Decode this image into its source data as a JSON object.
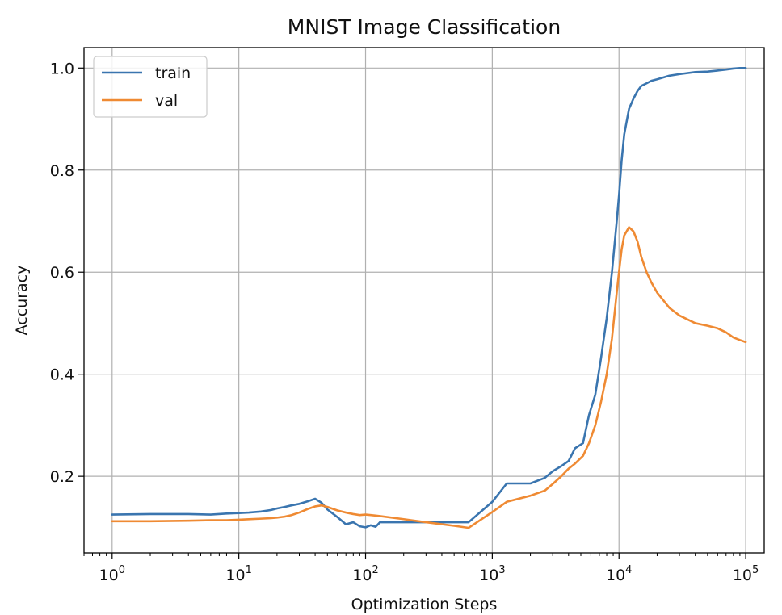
{
  "chart_data": {
    "type": "line",
    "title": "MNIST Image Classification",
    "xlabel": "Optimization Steps",
    "ylabel": "Accuracy",
    "x_scale": "log",
    "xlim": [
      0.6,
      140000
    ],
    "ylim": [
      0.05,
      1.04
    ],
    "xticks": [
      {
        "value": 1,
        "base": "10",
        "exp": "0"
      },
      {
        "value": 10,
        "base": "10",
        "exp": "1"
      },
      {
        "value": 100,
        "base": "10",
        "exp": "2"
      },
      {
        "value": 1000,
        "base": "10",
        "exp": "3"
      },
      {
        "value": 10000,
        "base": "10",
        "exp": "4"
      },
      {
        "value": 100000,
        "base": "10",
        "exp": "5"
      }
    ],
    "yticks": [
      {
        "value": 0.2,
        "label": "0.2"
      },
      {
        "value": 0.4,
        "label": "0.4"
      },
      {
        "value": 0.6,
        "label": "0.6"
      },
      {
        "value": 0.8,
        "label": "0.8"
      },
      {
        "value": 1.0,
        "label": "1.0"
      }
    ],
    "grid": true,
    "legend_position": "top-left",
    "series": [
      {
        "name": "train",
        "color": "#3a75af",
        "x": [
          1,
          2,
          4,
          6,
          8,
          10,
          12,
          15,
          18,
          20,
          23,
          26,
          30,
          35,
          40,
          45,
          50,
          60,
          70,
          80,
          90,
          100,
          110,
          120,
          130,
          200,
          300,
          400,
          500,
          650,
          1000,
          1300,
          2000,
          2600,
          3000,
          3500,
          4000,
          4500,
          5200,
          5800,
          6500,
          7200,
          8000,
          8800,
          9600,
          10000,
          10500,
          11000,
          12000,
          13000,
          14000,
          15000,
          16500,
          18000,
          20000,
          25000,
          30000,
          40000,
          50000,
          60000,
          70000,
          80000,
          90000,
          100000
        ],
        "y": [
          0.125,
          0.126,
          0.126,
          0.125,
          0.127,
          0.128,
          0.129,
          0.131,
          0.134,
          0.137,
          0.14,
          0.143,
          0.146,
          0.151,
          0.156,
          0.148,
          0.135,
          0.12,
          0.106,
          0.11,
          0.102,
          0.1,
          0.104,
          0.101,
          0.11,
          0.11,
          0.11,
          0.11,
          0.11,
          0.11,
          0.15,
          0.186,
          0.186,
          0.197,
          0.21,
          0.22,
          0.23,
          0.255,
          0.265,
          0.32,
          0.36,
          0.43,
          0.51,
          0.6,
          0.7,
          0.75,
          0.82,
          0.87,
          0.92,
          0.94,
          0.955,
          0.965,
          0.97,
          0.975,
          0.978,
          0.985,
          0.988,
          0.992,
          0.993,
          0.995,
          0.997,
          0.999,
          1.0,
          1.0
        ]
      },
      {
        "name": "val",
        "color": "#ef8a33",
        "x": [
          1,
          2,
          4,
          6,
          8,
          10,
          12,
          15,
          18,
          20,
          23,
          26,
          30,
          35,
          40,
          45,
          50,
          60,
          70,
          80,
          90,
          100,
          110,
          120,
          130,
          200,
          300,
          400,
          500,
          650,
          1000,
          1300,
          2000,
          2600,
          3000,
          3500,
          4000,
          4500,
          5200,
          5800,
          6500,
          7200,
          8000,
          8800,
          9600,
          10000,
          10500,
          11000,
          12000,
          13000,
          14000,
          15000,
          16500,
          18000,
          20000,
          25000,
          30000,
          40000,
          50000,
          60000,
          70000,
          80000,
          90000,
          100000
        ],
        "y": [
          0.112,
          0.112,
          0.113,
          0.114,
          0.114,
          0.115,
          0.116,
          0.117,
          0.118,
          0.119,
          0.121,
          0.124,
          0.129,
          0.136,
          0.141,
          0.143,
          0.14,
          0.133,
          0.129,
          0.126,
          0.124,
          0.125,
          0.124,
          0.123,
          0.122,
          0.116,
          0.11,
          0.106,
          0.103,
          0.099,
          0.13,
          0.15,
          0.162,
          0.172,
          0.185,
          0.2,
          0.215,
          0.225,
          0.24,
          0.265,
          0.3,
          0.345,
          0.4,
          0.47,
          0.56,
          0.6,
          0.645,
          0.672,
          0.688,
          0.68,
          0.66,
          0.63,
          0.6,
          0.58,
          0.56,
          0.53,
          0.515,
          0.5,
          0.495,
          0.49,
          0.482,
          0.472,
          0.467,
          0.463
        ]
      }
    ]
  }
}
